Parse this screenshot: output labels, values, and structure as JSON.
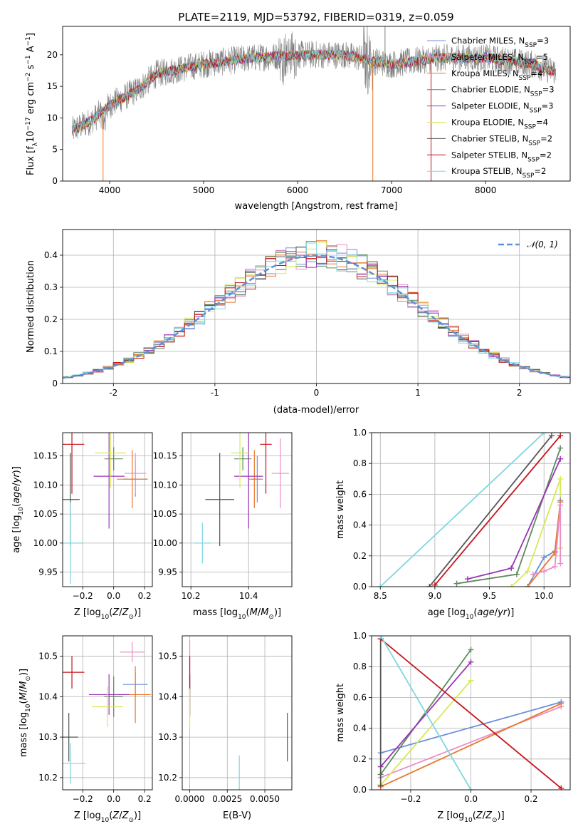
{
  "colors": {
    "chabrier_miles": "#6b8fdc",
    "salpeter_miles": "#e88fc3",
    "kroupa_miles": "#e8782a",
    "chabrier_elodie": "#5e8a5e",
    "salpeter_elodie": "#9a34b5",
    "kroupa_elodie": "#d6ea55",
    "chabrier_stelib": "#555555",
    "salpeter_stelib": "#c8141a",
    "kroupa_stelib": "#7fd6e0",
    "data": "#7f7f7f"
  },
  "legend_labels": [
    "Chabrier MILES, N",
    "Salpeter MILES, N",
    "Kroupa MILES, N",
    "Chabrier ELODIE, N",
    "Salpeter ELODIE, N",
    "Kroupa ELODIE, N",
    "Chabrier STELIB, N",
    "Salpeter STELIB, N",
    "Kroupa STELIB, N"
  ],
  "legend_ssp": [
    "=3",
    "=5",
    "=4",
    "=3",
    "=3",
    "=4",
    "=2",
    "=2",
    "=2"
  ],
  "legend_sub": "SSP",
  "chart_data": [
    {
      "id": "spectrum",
      "type": "line",
      "title": "PLATE=2119, MJD=53792, FIBERID=0319, z=0.059",
      "xlabel": "wavelength [Angstrom, rest frame]",
      "ylabel": "Flux [f",
      "xlim": [
        3500,
        8900
      ],
      "ylim": [
        0,
        24.5
      ],
      "xticks": [
        4000,
        5000,
        6000,
        7000,
        8000
      ],
      "yticks": [
        0,
        5,
        10,
        15,
        20
      ],
      "continuum_x": [
        3600,
        3800,
        4000,
        4300,
        4500,
        5000,
        5500,
        6000,
        6500,
        6800,
        7000,
        7500,
        8000,
        8500,
        8700
      ],
      "continuum_y": [
        8,
        9.5,
        12,
        14.5,
        17,
        18.5,
        19.5,
        20,
        20,
        19,
        18.5,
        19.5,
        19.5,
        18.5,
        17.5
      ]
    },
    {
      "id": "residuals",
      "type": "histogram",
      "xlabel": "(data-model)/error",
      "ylabel": "Normed distribution",
      "xlim": [
        -2.5,
        2.5
      ],
      "ylim": [
        0,
        0.48
      ],
      "xticks": [
        -2,
        -1,
        0,
        1,
        2
      ],
      "yticks": [
        0.0,
        0.1,
        0.2,
        0.3,
        0.4
      ],
      "gaussian_label": "𝒩(0, 1)",
      "gaussian_color": "#5f8fd8"
    },
    {
      "id": "age_Z",
      "type": "scatter",
      "xlabel": "Z [log",
      "ylabel": "age  [log",
      "xlim": [
        -0.33,
        0.25
      ],
      "ylim": [
        9.925,
        10.19
      ],
      "xticks": [
        -0.2,
        0.0,
        0.2
      ],
      "yticks": [
        9.95,
        10.0,
        10.05,
        10.1,
        10.15
      ],
      "xticklabels": [
        "−0.2",
        "0.0",
        "0.2"
      ],
      "yticklabels": [
        "9.95",
        "10.00",
        "10.05",
        "10.10",
        "10.15"
      ],
      "points": [
        {
          "s": "chabrier_miles",
          "x": 0.14,
          "y": 10.11,
          "xerr": 0.08,
          "yerr": 0.03
        },
        {
          "s": "salpeter_miles",
          "x": 0.14,
          "y": 10.12,
          "xerr": 0.07,
          "yerr": 0.035
        },
        {
          "s": "kroupa_miles",
          "x": 0.12,
          "y": 10.11,
          "xerr": 0.1,
          "yerr": 0.05
        },
        {
          "s": "chabrier_elodie",
          "x": 0.0,
          "y": 10.145,
          "xerr": 0.06,
          "yerr": 0.02
        },
        {
          "s": "salpeter_elodie",
          "x": -0.03,
          "y": 10.115,
          "xerr": 0.1,
          "yerr": 0.09
        },
        {
          "s": "kroupa_elodie",
          "x": -0.02,
          "y": 10.155,
          "xerr": 0.1,
          "yerr": 0.06
        },
        {
          "s": "chabrier_stelib",
          "x": -0.28,
          "y": 10.075,
          "xerr": 0.06,
          "yerr": 0.08
        },
        {
          "s": "salpeter_stelib",
          "x": -0.27,
          "y": 10.17,
          "xerr": 0.08,
          "yerr": 0.085
        },
        {
          "s": "kroupa_stelib",
          "x": -0.28,
          "y": 10.0,
          "xerr": 0.08,
          "yerr": 0.07
        }
      ]
    },
    {
      "id": "age_mass",
      "type": "scatter",
      "xlabel": "mass [log",
      "ylabel": "",
      "xlim": [
        10.17,
        10.55
      ],
      "ylim": [
        9.925,
        10.19
      ],
      "xticks": [
        10.2,
        10.4
      ],
      "yticks": [
        9.95,
        10.0,
        10.05,
        10.1,
        10.15
      ],
      "xticklabels": [
        "10.2",
        "10.4"
      ],
      "yticklabels": [
        "9.95",
        "10.00",
        "10.05",
        "10.10",
        "10.15"
      ],
      "points": [
        {
          "s": "chabrier_miles",
          "x": 10.43,
          "y": 10.11,
          "xerr": 0.02,
          "yerr": 0.04
        },
        {
          "s": "salpeter_miles",
          "x": 10.51,
          "y": 10.12,
          "xerr": 0.03,
          "yerr": 0.06
        },
        {
          "s": "kroupa_miles",
          "x": 10.42,
          "y": 10.11,
          "xerr": 0.02,
          "yerr": 0.05
        },
        {
          "s": "chabrier_elodie",
          "x": 10.38,
          "y": 10.145,
          "xerr": 0.03,
          "yerr": 0.02
        },
        {
          "s": "salpeter_elodie",
          "x": 10.4,
          "y": 10.115,
          "xerr": 0.05,
          "yerr": 0.09
        },
        {
          "s": "kroupa_elodie",
          "x": 10.37,
          "y": 10.155,
          "xerr": 0.03,
          "yerr": 0.06
        },
        {
          "s": "chabrier_stelib",
          "x": 10.3,
          "y": 10.075,
          "xerr": 0.05,
          "yerr": 0.08
        },
        {
          "s": "salpeter_stelib",
          "x": 10.46,
          "y": 10.17,
          "xerr": 0.02,
          "yerr": 0.085
        },
        {
          "s": "kroupa_stelib",
          "x": 10.24,
          "y": 10.0,
          "xerr": 0.03,
          "yerr": 0.035
        }
      ]
    },
    {
      "id": "mass_Z",
      "type": "scatter",
      "xlabel": "Z [log",
      "ylabel": "mass [log",
      "xlim": [
        -0.33,
        0.25
      ],
      "ylim": [
        10.17,
        10.55
      ],
      "xticks": [
        -0.2,
        0.0,
        0.2
      ],
      "yticks": [
        10.2,
        10.3,
        10.4,
        10.5
      ],
      "xticklabels": [
        "−0.2",
        "0.0",
        "0.2"
      ],
      "yticklabels": [
        "10.2",
        "10.3",
        "10.4",
        "10.5"
      ],
      "points": [
        {
          "s": "chabrier_miles",
          "x": 0.14,
          "y": 10.43,
          "xerr": 0.08,
          "yerr": 0.03
        },
        {
          "s": "salpeter_miles",
          "x": 0.12,
          "y": 10.51,
          "xerr": 0.08,
          "yerr": 0.025
        },
        {
          "s": "kroupa_miles",
          "x": 0.14,
          "y": 10.405,
          "xerr": 0.1,
          "yerr": 0.07
        },
        {
          "s": "chabrier_elodie",
          "x": 0.0,
          "y": 10.4,
          "xerr": 0.06,
          "yerr": 0.05
        },
        {
          "s": "salpeter_elodie",
          "x": -0.03,
          "y": 10.405,
          "xerr": 0.13,
          "yerr": 0.05
        },
        {
          "s": "kroupa_elodie",
          "x": -0.04,
          "y": 10.375,
          "xerr": 0.1,
          "yerr": 0.05
        },
        {
          "s": "chabrier_stelib",
          "x": -0.29,
          "y": 10.3,
          "xerr": 0.06,
          "yerr": 0.06
        },
        {
          "s": "salpeter_stelib",
          "x": -0.27,
          "y": 10.46,
          "xerr": 0.08,
          "yerr": 0.04
        },
        {
          "s": "kroupa_stelib",
          "x": -0.28,
          "y": 10.235,
          "xerr": 0.1,
          "yerr": 0.05
        }
      ]
    },
    {
      "id": "mass_ebv",
      "type": "scatter",
      "xlabel": "E(B-V)",
      "ylabel": "",
      "xlim": [
        -0.0005,
        0.0068
      ],
      "ylim": [
        10.17,
        10.55
      ],
      "xticks": [
        0.0,
        0.0025,
        0.005
      ],
      "yticks": [
        10.2,
        10.3,
        10.4,
        10.5
      ],
      "xticklabels": [
        "0.0000",
        "0.0025",
        "0.0050"
      ],
      "yticklabels": [
        "10.2",
        "10.3",
        "10.4",
        "10.5"
      ],
      "points": [
        {
          "s": "chabrier_miles",
          "x": 0.0,
          "y": 10.43,
          "xerr": 0,
          "yerr": 0.03
        },
        {
          "s": "salpeter_miles",
          "x": 0.0,
          "y": 10.5,
          "xerr": 0,
          "yerr": 0.04
        },
        {
          "s": "kroupa_miles",
          "x": 0.0,
          "y": 10.405,
          "xerr": 0,
          "yerr": 0.05
        },
        {
          "s": "chabrier_elodie",
          "x": 0.0,
          "y": 10.4,
          "xerr": 0,
          "yerr": 0.05
        },
        {
          "s": "salpeter_elodie",
          "x": 0.0,
          "y": 10.405,
          "xerr": 0,
          "yerr": 0.05
        },
        {
          "s": "kroupa_elodie",
          "x": 0.0,
          "y": 10.375,
          "xerr": 0,
          "yerr": 0.05
        },
        {
          "s": "chabrier_stelib",
          "x": 0.0065,
          "y": 10.3,
          "xerr": 0,
          "yerr": 0.06
        },
        {
          "s": "salpeter_stelib",
          "x": 0.0,
          "y": 10.46,
          "xerr": 0,
          "yerr": 0.04
        },
        {
          "s": "kroupa_stelib",
          "x": 0.0033,
          "y": 10.21,
          "xerr": 0,
          "yerr": 0.045
        }
      ]
    },
    {
      "id": "weight_age",
      "type": "line",
      "xlabel": "age  [log",
      "ylabel": "mass weight",
      "xlim": [
        8.42,
        10.24
      ],
      "ylim": [
        0,
        1
      ],
      "xticks": [
        8.5,
        9.0,
        9.5,
        10.0
      ],
      "yticks": [
        0.0,
        0.2,
        0.4,
        0.6,
        0.8,
        1.0
      ],
      "xticklabels": [
        "8.5",
        "9.0",
        "9.5",
        "10.0"
      ],
      "yticklabels": [
        "0.0",
        "0.2",
        "0.4",
        "0.6",
        "0.8",
        "1.0"
      ],
      "series": [
        {
          "s": "kroupa_stelib",
          "x": [
            8.5,
            10.0
          ],
          "y": [
            0.0,
            1.0
          ]
        },
        {
          "s": "chabrier_stelib",
          "x": [
            8.95,
            10.07
          ],
          "y": [
            0.0,
            0.98
          ]
        },
        {
          "s": "salpeter_stelib",
          "x": [
            9.0,
            10.15
          ],
          "y": [
            0.01,
            0.98
          ]
        },
        {
          "s": "chabrier_elodie",
          "x": [
            9.2,
            9.75,
            10.15
          ],
          "y": [
            0.02,
            0.08,
            0.9
          ]
        },
        {
          "s": "salpeter_elodie",
          "x": [
            9.3,
            9.7,
            10.15
          ],
          "y": [
            0.05,
            0.12,
            0.83
          ]
        },
        {
          "s": "kroupa_elodie",
          "x": [
            9.7,
            9.85,
            10.15,
            10.15
          ],
          "y": [
            0.0,
            0.1,
            0.7,
            0.25
          ]
        },
        {
          "s": "chabrier_miles",
          "x": [
            9.85,
            10.0,
            10.1,
            10.15,
            10.15
          ],
          "y": [
            0.0,
            0.19,
            0.23,
            0.55,
            0.56
          ]
        },
        {
          "s": "kroupa_miles",
          "x": [
            9.85,
            10.1,
            10.15,
            10.15
          ],
          "y": [
            0.0,
            0.22,
            0.55,
            0.55
          ]
        },
        {
          "s": "salpeter_miles",
          "x": [
            9.9,
            10.0,
            10.1,
            10.15,
            10.15
          ],
          "y": [
            0.08,
            0.1,
            0.13,
            0.53,
            0.15
          ]
        }
      ]
    },
    {
      "id": "weight_Z",
      "type": "line",
      "xlabel": "Z [log",
      "ylabel": "mass weight",
      "xlim": [
        -0.33,
        0.33
      ],
      "ylim": [
        0,
        1
      ],
      "xticks": [
        -0.2,
        0.0,
        0.2
      ],
      "yticks": [
        0.0,
        0.2,
        0.4,
        0.6,
        0.8,
        1.0
      ],
      "xticklabels": [
        "−0.2",
        "0.0",
        "0.2"
      ],
      "yticklabels": [
        "0.0",
        "0.2",
        "0.4",
        "0.6",
        "0.8",
        "1.0"
      ],
      "series": [
        {
          "s": "chabrier_miles",
          "x": [
            -0.3,
            0.3
          ],
          "y": [
            0.24,
            0.57
          ]
        },
        {
          "s": "salpeter_miles",
          "x": [
            -0.3,
            0.3
          ],
          "y": [
            0.08,
            0.54
          ]
        },
        {
          "s": "kroupa_miles",
          "x": [
            -0.3,
            0.3
          ],
          "y": [
            0.02,
            0.56
          ]
        },
        {
          "s": "chabrier_elodie",
          "x": [
            -0.3,
            0.0
          ],
          "y": [
            0.1,
            0.91
          ]
        },
        {
          "s": "salpeter_elodie",
          "x": [
            -0.3,
            0.0
          ],
          "y": [
            0.15,
            0.83
          ]
        },
        {
          "s": "kroupa_elodie",
          "x": [
            -0.3,
            0.0
          ],
          "y": [
            0.03,
            0.71
          ]
        },
        {
          "s": "chabrier_stelib",
          "x": [
            -0.3,
            -0.3
          ],
          "y": [
            0.03,
            0.98
          ]
        },
        {
          "s": "salpeter_stelib",
          "x": [
            -0.3,
            0.3
          ],
          "y": [
            0.98,
            0.01
          ]
        },
        {
          "s": "kroupa_stelib",
          "x": [
            -0.3,
            0.0
          ],
          "y": [
            1.0,
            0.0
          ]
        }
      ]
    }
  ]
}
